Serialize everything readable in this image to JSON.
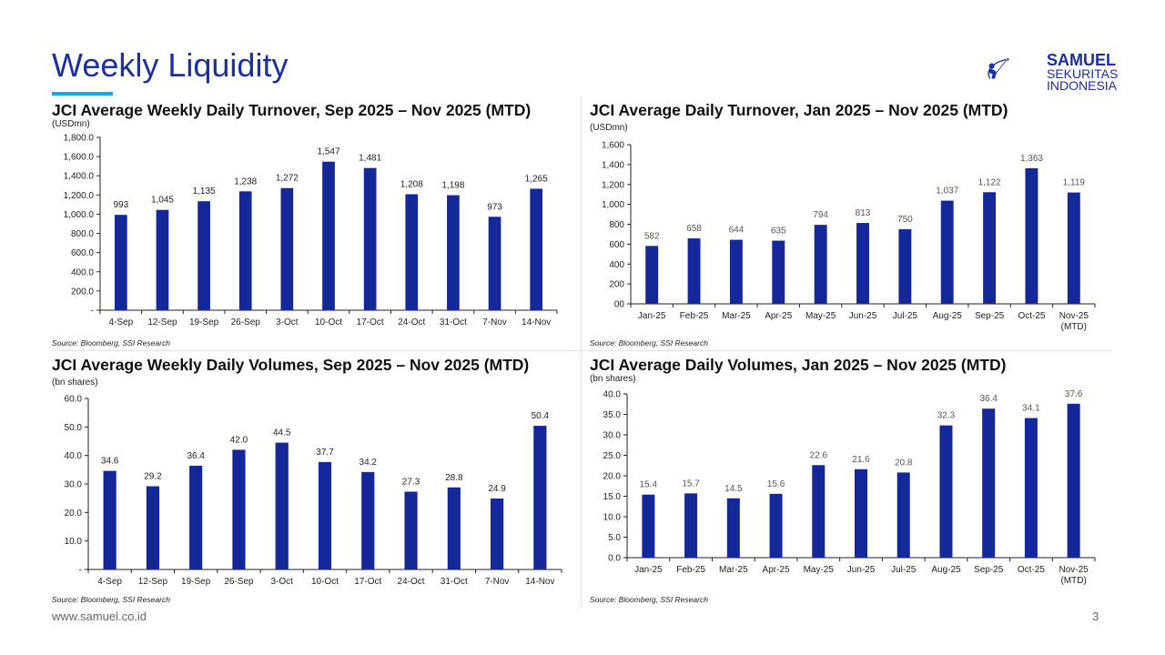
{
  "header": {
    "title": "Weekly Liquidity",
    "logo": {
      "line1": "SAMUEL",
      "line2": "SEKURITAS",
      "line3": "INDONESIA",
      "icon": "archer-logo-icon"
    }
  },
  "footer": {
    "url": "www.samuel.co.id",
    "page_number": "3"
  },
  "colors": {
    "bar": "#15289a",
    "title": "#1a2fa0",
    "accent": "#00b0f0"
  },
  "chart_data": [
    {
      "id": "weekly-turnover",
      "type": "bar",
      "title": "JCI Average Weekly Daily Turnover, Sep 2025 – Nov 2025 (MTD)",
      "ylabel": "(USDmn)",
      "source": "Source: Bloomberg, SSI Research",
      "categories": [
        "4-Sep",
        "12-Sep",
        "19-Sep",
        "26-Sep",
        "3-Oct",
        "10-Oct",
        "17-Oct",
        "24-Oct",
        "31-Oct",
        "7-Nov",
        "14-Nov"
      ],
      "values": [
        993,
        1045,
        1135,
        1238,
        1272,
        1547,
        1481,
        1208,
        1198,
        973,
        1265
      ],
      "data_labels": [
        "993",
        "1,045",
        "1,135",
        "1,238",
        "1,272",
        "1,547",
        "1,481",
        "1,208",
        "1,198",
        "973",
        "1,265"
      ],
      "ylim": [
        0,
        1800
      ],
      "yticks": [
        0,
        200,
        400,
        600,
        800,
        1000,
        1200,
        1400,
        1600,
        1800
      ],
      "ytick_labels": [
        "-",
        "200.0",
        "400.0",
        "600.0",
        "800.0",
        "1,000.0",
        "1,200.0",
        "1,400.0",
        "1,600.0",
        "1,800.0"
      ],
      "grid": false,
      "legend": "none"
    },
    {
      "id": "monthly-turnover",
      "type": "bar",
      "title": "JCI Average Daily Turnover, Jan 2025 – Nov 2025 (MTD)",
      "ylabel": "(USDmn)",
      "source": "Source: Bloomberg, SSI Research",
      "categories": [
        "Jan-25",
        "Feb-25",
        "Mar-25",
        "Apr-25",
        "May-25",
        "Jun-25",
        "Jul-25",
        "Aug-25",
        "Sep-25",
        "Oct-25",
        "Nov-25|(MTD)"
      ],
      "values": [
        582,
        658,
        644,
        635,
        794,
        813,
        750,
        1037,
        1122,
        1363,
        1119
      ],
      "data_labels": [
        "582",
        "658",
        "644",
        "635",
        "794",
        "813",
        "750",
        "1,037",
        "1,122",
        "1,363",
        "1,119"
      ],
      "ylim": [
        0,
        1600
      ],
      "yticks": [
        0,
        200,
        400,
        600,
        800,
        1000,
        1200,
        1400,
        1600
      ],
      "ytick_labels": [
        "00",
        "200",
        "400",
        "600",
        "800",
        "1,000",
        "1,200",
        "1,400",
        "1,600"
      ],
      "grid": false,
      "legend": "none"
    },
    {
      "id": "weekly-volumes",
      "type": "bar",
      "title": "JCI Average Weekly Daily Volumes, Sep 2025 – Nov 2025 (MTD)",
      "ylabel": "(bn shares)",
      "source": "Source: Bloomberg, SSI Research",
      "categories": [
        "4-Sep",
        "12-Sep",
        "19-Sep",
        "26-Sep",
        "3-Oct",
        "10-Oct",
        "17-Oct",
        "24-Oct",
        "31-Oct",
        "7-Nov",
        "14-Nov"
      ],
      "values": [
        34.6,
        29.2,
        36.4,
        42.0,
        44.5,
        37.7,
        34.2,
        27.3,
        28.8,
        24.9,
        50.4
      ],
      "data_labels": [
        "34.6",
        "29.2",
        "36.4",
        "42.0",
        "44.5",
        "37.7",
        "34.2",
        "27.3",
        "28.8",
        "24.9",
        "50.4"
      ],
      "ylim": [
        0,
        60
      ],
      "yticks": [
        0,
        10,
        20,
        30,
        40,
        50,
        60
      ],
      "ytick_labels": [
        "-",
        "10.0",
        "20.0",
        "30.0",
        "40.0",
        "50.0",
        "60.0"
      ],
      "grid": false,
      "legend": "none"
    },
    {
      "id": "monthly-volumes",
      "type": "bar",
      "title": "JCI Average Daily Volumes, Jan 2025 – Nov 2025 (MTD)",
      "ylabel": "(bn shares)",
      "source": "Source: Bloomberg, SSI Research",
      "categories": [
        "Jan-25",
        "Feb-25",
        "Mar-25",
        "Apr-25",
        "May-25",
        "Jun-25",
        "Jul-25",
        "Aug-25",
        "Sep-25",
        "Oct-25",
        "Nov-25|(MTD)"
      ],
      "values": [
        15.4,
        15.7,
        14.5,
        15.6,
        22.6,
        21.6,
        20.8,
        32.3,
        36.4,
        34.1,
        37.6
      ],
      "data_labels": [
        "15.4",
        "15.7",
        "14.5",
        "15.6",
        "22.6",
        "21.6",
        "20.8",
        "32.3",
        "36.4",
        "34.1",
        "37.6"
      ],
      "ylim": [
        0,
        40
      ],
      "yticks": [
        0,
        5,
        10,
        15,
        20,
        25,
        30,
        35,
        40
      ],
      "ytick_labels": [
        "0.0",
        "5.0",
        "10.0",
        "15.0",
        "20.0",
        "25.0",
        "30.0",
        "35.0",
        "40.0"
      ],
      "grid": false,
      "legend": "none"
    }
  ]
}
